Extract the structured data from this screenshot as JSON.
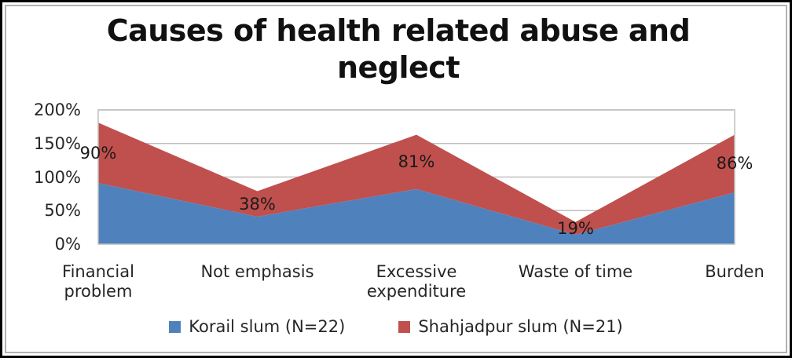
{
  "chart_data": {
    "type": "area",
    "stacked": true,
    "title": "Causes of health related abuse and neglect",
    "categories": [
      "Financial problem",
      "Not emphasis",
      "Excessive expenditure",
      "Waste of time",
      "Burden"
    ],
    "series": [
      {
        "name": "Korail slum  (N=22)",
        "color": "#4F81BD",
        "values": [
          91,
          41,
          82,
          14,
          77
        ]
      },
      {
        "name": "Shahjadpur slum (N=21)",
        "color": "#C0504D",
        "values": [
          90,
          38,
          81,
          19,
          86
        ],
        "data_labels": [
          "90%",
          "38%",
          "81%",
          "19%",
          "86%"
        ]
      }
    ],
    "ylabel": "",
    "xlabel": "",
    "ylim": [
      0,
      200
    ],
    "yticks": [
      "0%",
      "50%",
      "100%",
      "150%",
      "200%"
    ],
    "grid": true,
    "gridline_color": "#bfbfbf",
    "plot_border_color": "#bfbfbf",
    "legend_position": "bottom"
  }
}
